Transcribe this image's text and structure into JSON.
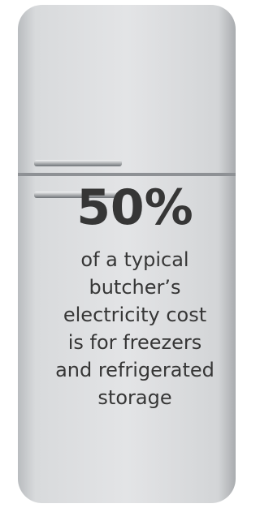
{
  "stat": "50%",
  "description_lines": [
    "of a typical",
    "butcher’s",
    "electricity cost",
    "is for freezers",
    "and refrigerated",
    "storage"
  ]
}
